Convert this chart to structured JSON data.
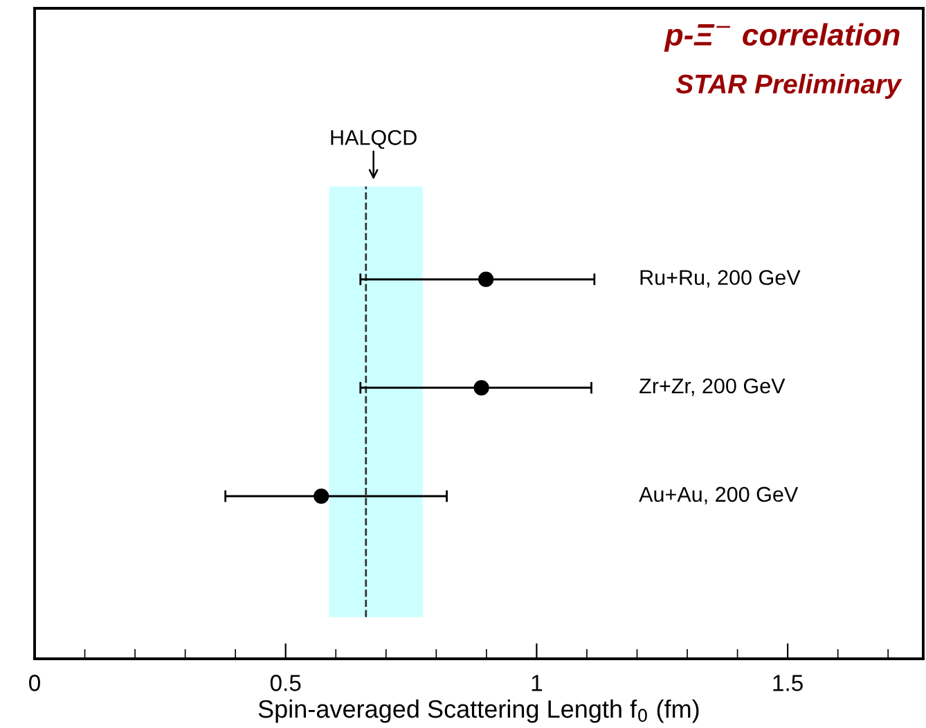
{
  "chart_data": {
    "type": "scatter",
    "orientation": "horizontal",
    "title": "p-Ξ$^{−}$ correlation",
    "subtitle": "STAR Preliminary",
    "xlabel": "Spin-averaged Scattering Length f$_{0}$ (fm)",
    "categories": [
      "Ru+Ru, 200 GeV",
      "Zr+Zr, 200 GeV",
      "Au+Au, 200 GeV"
    ],
    "series": [
      {
        "color": "#000000",
        "values": [
          0.899,
          0.89,
          0.571
        ],
        "errors": [
          [
            0.649,
            1.115
          ],
          [
            0.649,
            1.109
          ],
          [
            0.38,
            0.821
          ]
        ]
      }
    ],
    "marker": "circle",
    "xlim": [
      0,
      1.77
    ],
    "xticks": [
      0,
      0.5,
      1,
      1.5
    ],
    "ref_lines": [
      {
        "axis": "x",
        "value": 0.66,
        "label": "HALQCD",
        "line_style": "dashed",
        "color": "#333333"
      }
    ],
    "bands": [
      {
        "axis": "x",
        "from": 0.587,
        "to": 0.773,
        "color": "#ccffff"
      }
    ],
    "grid": false,
    "legend": false
  }
}
